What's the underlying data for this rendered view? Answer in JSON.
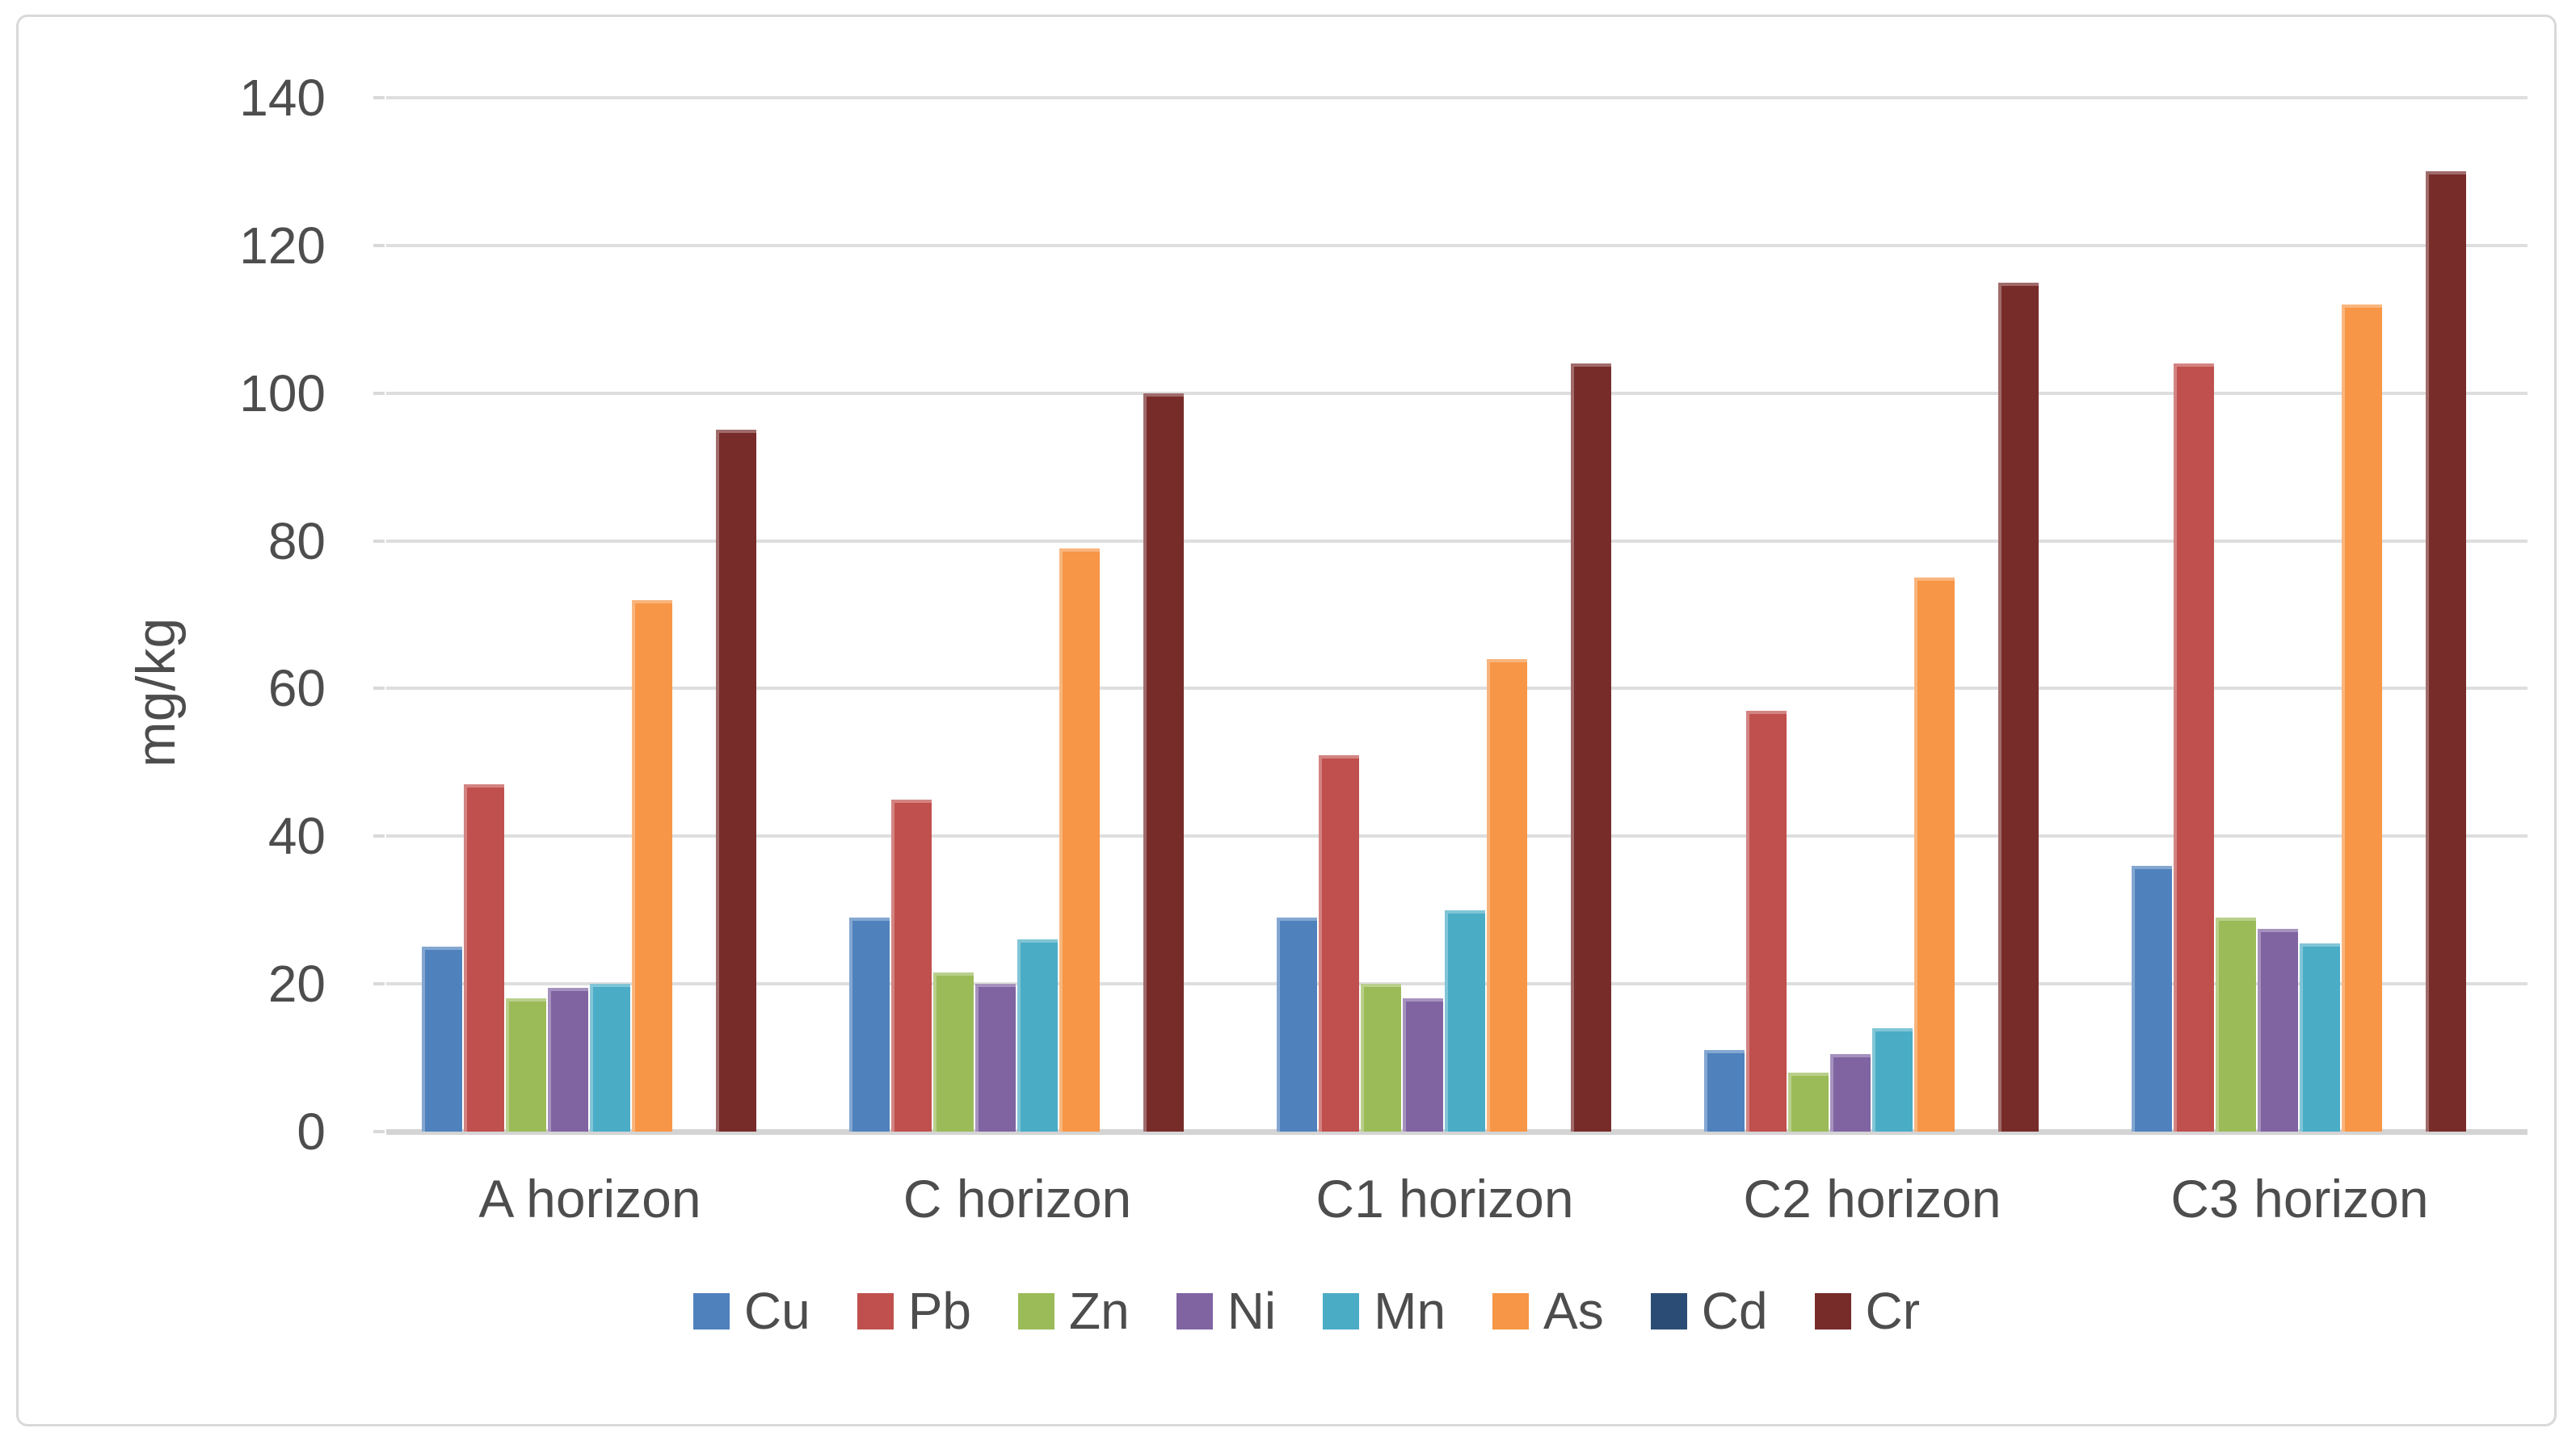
{
  "chart_data": {
    "type": "bar",
    "title": "",
    "xlabel": "",
    "ylabel": "mg/kg",
    "ylim": [
      0,
      140
    ],
    "yticks": [
      0,
      20,
      40,
      60,
      80,
      100,
      120,
      140
    ],
    "grid": "horizontal-only",
    "legend_position": "bottom",
    "categories": [
      "A horizon",
      "C horizon",
      "C1 horizon",
      "C2 horizon",
      "C3 horizon"
    ],
    "series": [
      {
        "name": "Cu",
        "color": "#4F81BD",
        "values": [
          25,
          29,
          29,
          11,
          36
        ]
      },
      {
        "name": "Pb",
        "color": "#C0504D",
        "values": [
          47,
          45,
          51,
          57,
          104
        ]
      },
      {
        "name": "Zn",
        "color": "#9BBB59",
        "values": [
          18,
          21.5,
          20,
          8,
          29
        ]
      },
      {
        "name": "Ni",
        "color": "#8064A2",
        "values": [
          19.5,
          20,
          18,
          10.5,
          27.5
        ]
      },
      {
        "name": "Mn",
        "color": "#4BACC6",
        "values": [
          20,
          26,
          30,
          14,
          25.5
        ]
      },
      {
        "name": "As",
        "color": "#F79646",
        "values": [
          72,
          79,
          64,
          75,
          112
        ]
      },
      {
        "name": "Cd",
        "color": "#2B4D75",
        "values": [
          0,
          0,
          0,
          0,
          0
        ]
      },
      {
        "name": "Cr",
        "color": "#772C2A",
        "values": [
          95,
          100,
          104,
          115,
          130
        ]
      }
    ]
  },
  "frame": {
    "background": "#ffffff",
    "border_color": "#d9d9d9",
    "gridline_color": "#dedede",
    "axis_text_color": "#4d4d4d"
  }
}
